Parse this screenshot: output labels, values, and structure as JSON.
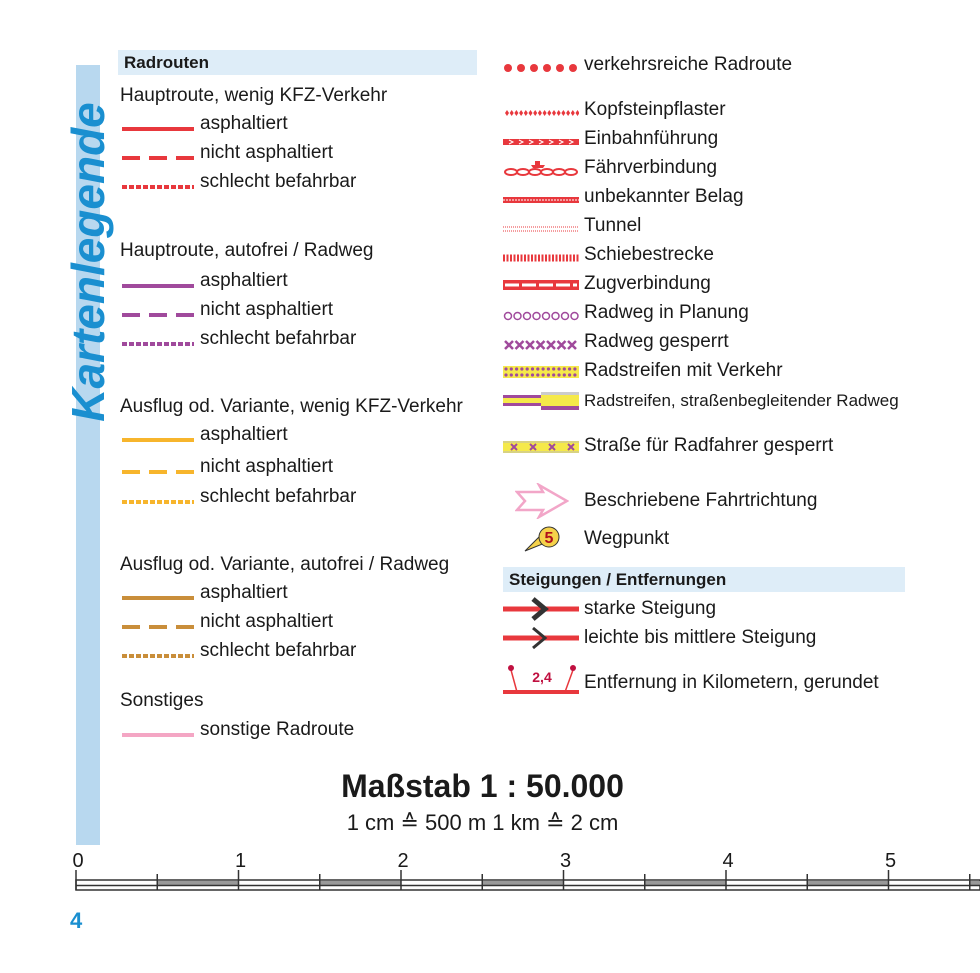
{
  "title": "Kartenlegende",
  "colors": {
    "red": "#e8383d",
    "purple": "#a04a9c",
    "yellow": "#f7b52c",
    "brown": "#c98e3a",
    "pink": "#f4a6c4",
    "blue": "#1a8fd0"
  },
  "left": {
    "header": "Radrouten",
    "groups": [
      {
        "title": "Hauptroute, wenig KFZ-Verkehr",
        "items": [
          "asphaltiert",
          "nicht asphaltiert",
          "schlecht befahrbar"
        ]
      },
      {
        "title": "Hauptroute, autofrei / Radweg",
        "items": [
          "asphaltiert",
          "nicht asphaltiert",
          "schlecht befahrbar"
        ]
      },
      {
        "title": "Ausflug od. Variante, wenig KFZ-Verkehr",
        "items": [
          "asphaltiert",
          "nicht asphaltiert",
          "schlecht befahrbar"
        ]
      },
      {
        "title": "Ausflug od. Variante, autofrei / Radweg",
        "items": [
          "asphaltiert",
          "nicht asphaltiert",
          "schlecht befahrbar"
        ]
      },
      {
        "title": "Sonstiges",
        "items": [
          "sonstige Radroute"
        ]
      }
    ]
  },
  "right": {
    "items": [
      "verkehrsreiche Radroute",
      "Kopfsteinpflaster",
      "Einbahnführung",
      "Fährverbindung",
      "unbekannter Belag",
      "Tunnel",
      "Schiebestrecke",
      "Zugverbindung",
      "Radweg in Planung",
      "Radweg gesperrt",
      "Radstreifen mit Verkehr",
      "Radstreifen, straßenbegleitender Radweg",
      "Straße für Radfahrer gesperrt",
      "Beschriebene Fahrtrichtung",
      "Wegpunkt"
    ],
    "waypoint_number": "5",
    "header2": "Steigungen / Entfernungen",
    "items2": [
      "starke Steigung",
      "leichte bis mittlere Steigung",
      "Entfernung in Kilometern, gerundet"
    ],
    "distance_example": "2,4"
  },
  "scale": {
    "title": "Maßstab 1 : 50.000",
    "subtitle": "1 cm ≙ 500 m       1 km ≙ 2 cm",
    "ticks": [
      "0",
      "1",
      "2",
      "3",
      "4",
      "5"
    ]
  },
  "page_number": "4"
}
